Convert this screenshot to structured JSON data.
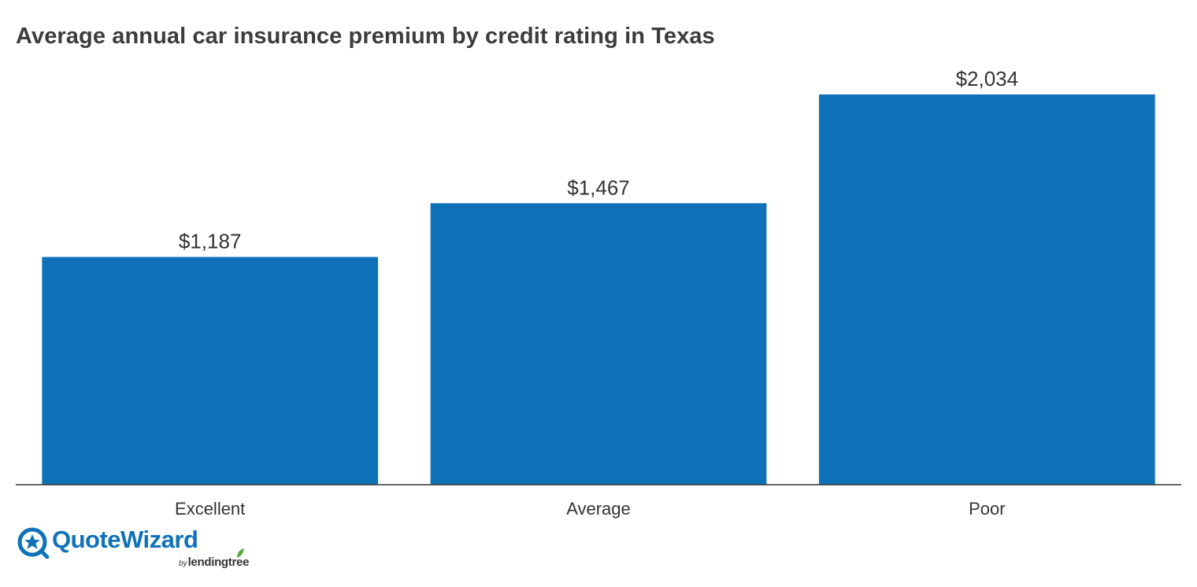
{
  "chart_data": {
    "type": "bar",
    "title": "Average annual car insurance premium by credit rating in Texas",
    "xlabel": "",
    "ylabel": "",
    "categories": [
      "Excellent",
      "Average",
      "Poor"
    ],
    "values": [
      1187,
      1467,
      2034
    ],
    "value_labels": [
      "$1,187",
      "$1,467",
      "$2,034"
    ],
    "ylim": [
      0,
      2034
    ],
    "grid": false,
    "legend": "none",
    "bar_color": "#0f72b8",
    "axis_color": "#333333"
  },
  "logo": {
    "brand": "QuoteWizard",
    "by": "by",
    "parent": "lendingtree",
    "brand_color": "#0f72b8",
    "leaf_color": "#5aa832"
  }
}
